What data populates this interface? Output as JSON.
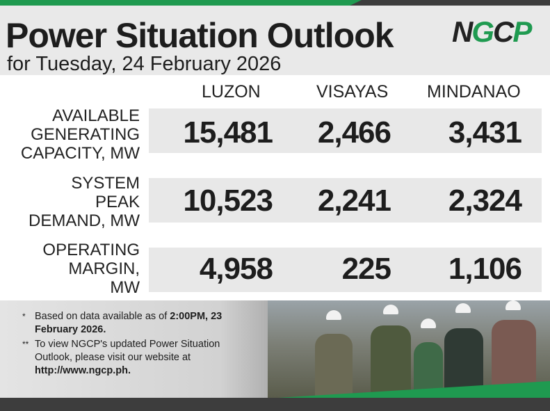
{
  "header": {
    "title": "Power Situation Outlook",
    "subtitle": "for Tuesday, 24 February 2026",
    "logo_text": "NGCP"
  },
  "columns": [
    "LUZON",
    "VISAYAS",
    "MINDANAO"
  ],
  "rows": [
    {
      "label_lines": [
        "AVAILABLE",
        "GENERATING",
        "CAPACITY, MW"
      ],
      "values": [
        "15,481",
        "2,466",
        "3,431"
      ]
    },
    {
      "label_lines": [
        "SYSTEM",
        "PEAK",
        "DEMAND, MW"
      ],
      "values": [
        "10,523",
        "2,241",
        "2,324"
      ]
    },
    {
      "label_lines": [
        "OPERATING",
        "MARGIN,",
        "MW"
      ],
      "values": [
        "4,958",
        "225",
        "1,106"
      ]
    }
  ],
  "notes": {
    "note1_marker": "*",
    "note1_text": "Based on data available as of ",
    "note1_bold": "2:00PM, 23 February 2026.",
    "note2_marker": "**",
    "note2_text": "To view NGCP's updated Power Situation Outlook, please visit our website at ",
    "note2_link": "http://www.ngcp.ph."
  },
  "colors": {
    "brand_green": "#1f9a50",
    "dark_bar": "#3d3d3d",
    "band_gray": "#e8e8e8"
  }
}
